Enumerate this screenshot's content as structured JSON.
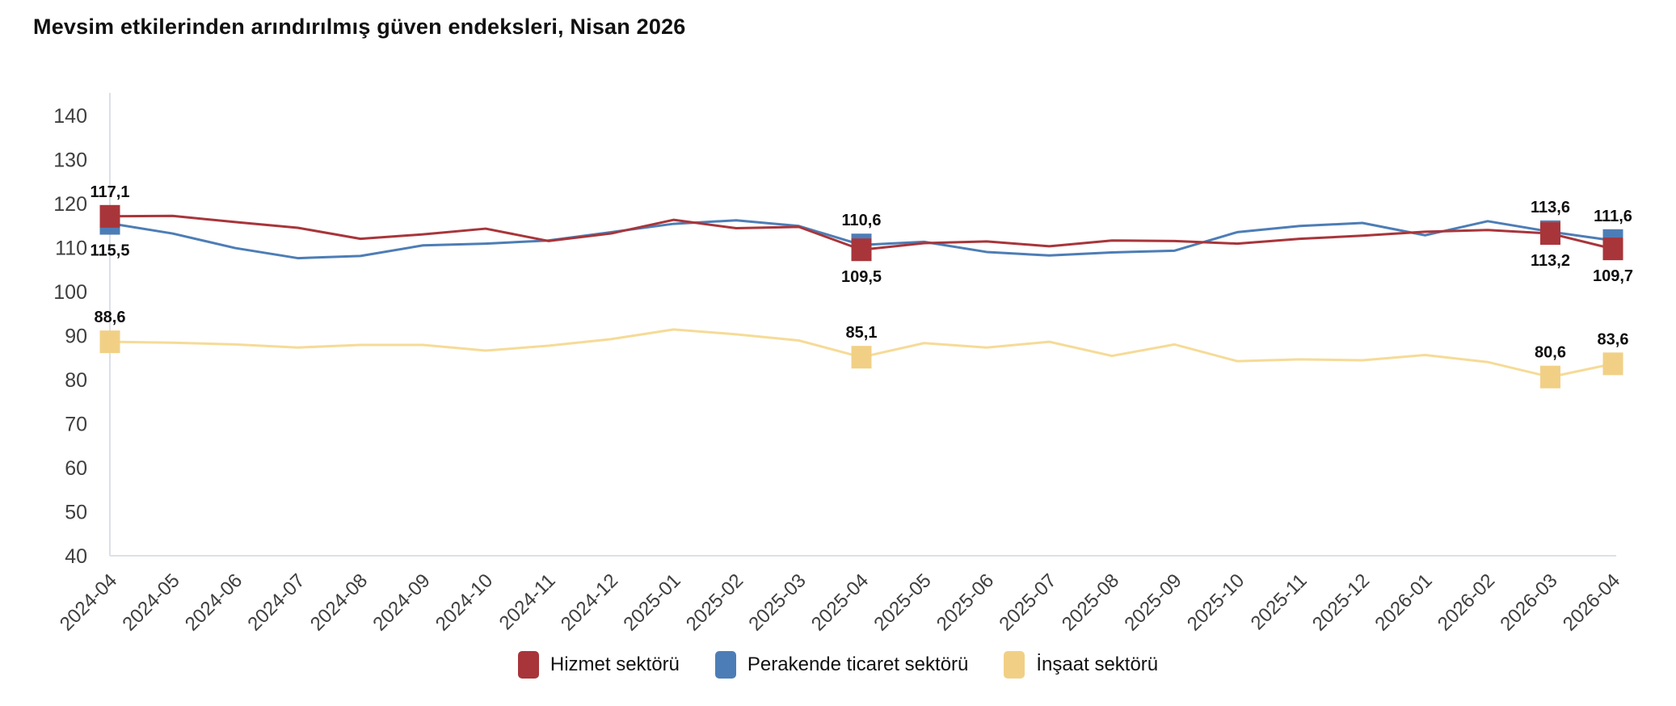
{
  "title": "Mevsim etkilerinden arındırılmış güven endeksleri, Nisan 2026",
  "background": "#ffffff",
  "axis": {
    "line_color": "#dce0e6",
    "tick_text_color": "#3f3f3f"
  },
  "chart_data": {
    "type": "line",
    "title": "Mevsim etkilerinden arındırılmış güven endeksleri, Nisan 2026",
    "xlabel": "",
    "ylabel": "",
    "ylim": [
      40,
      140
    ],
    "yticks": [
      140,
      130,
      120,
      110,
      100,
      90,
      80,
      70,
      60,
      50,
      40
    ],
    "grid": false,
    "legend_position": "bottom-center",
    "marker_shape": "square",
    "marker_x": [
      "2024-04",
      "2025-04",
      "2026-03",
      "2026-04"
    ],
    "x": [
      "2024-04",
      "2024-05",
      "2024-06",
      "2024-07",
      "2024-08",
      "2024-09",
      "2024-10",
      "2024-11",
      "2024-12",
      "2025-01",
      "2025-02",
      "2025-03",
      "2025-04",
      "2025-05",
      "2025-06",
      "2025-07",
      "2025-08",
      "2025-09",
      "2025-10",
      "2025-11",
      "2025-12",
      "2026-01",
      "2026-02",
      "2026-03",
      "2026-04"
    ],
    "series": [
      {
        "key": "insaat",
        "name": "İnşaat sektörü",
        "color": "#F1D086",
        "line_color": "#F6DB97",
        "values": [
          88.6,
          88.4,
          88.0,
          87.3,
          87.9,
          87.9,
          86.6,
          87.7,
          89.2,
          91.4,
          90.3,
          88.9,
          85.1,
          88.3,
          87.3,
          88.6,
          85.4,
          88.0,
          84.2,
          84.6,
          84.4,
          85.6,
          84.0,
          80.6,
          83.6
        ],
        "labeled_points": [
          {
            "x": "2024-04",
            "label": "88,6",
            "placement": "above"
          },
          {
            "x": "2025-04",
            "label": "85,1",
            "placement": "above"
          },
          {
            "x": "2026-03",
            "label": "80,6",
            "placement": "above"
          },
          {
            "x": "2026-04",
            "label": "83,6",
            "placement": "above"
          }
        ]
      },
      {
        "key": "perakende",
        "name": "Perakende ticaret sektörü",
        "color": "#4D7DB6",
        "line_color": "#4D7DB6",
        "values": [
          115.5,
          113.2,
          109.9,
          107.6,
          108.1,
          110.5,
          110.9,
          111.6,
          113.5,
          115.4,
          116.2,
          114.9,
          110.6,
          111.3,
          109.0,
          108.2,
          108.9,
          109.3,
          113.5,
          114.9,
          115.6,
          112.8,
          116.0,
          113.6,
          111.6
        ],
        "labeled_points": [
          {
            "x": "2024-04",
            "label": "115,5",
            "placement": "below"
          },
          {
            "x": "2025-04",
            "label": "110,6",
            "placement": "above"
          },
          {
            "x": "2026-03",
            "label": "113,6",
            "placement": "above"
          },
          {
            "x": "2026-04",
            "label": "111,6",
            "placement": "above"
          }
        ]
      },
      {
        "key": "hizmet",
        "name": "Hizmet sektörü",
        "color": "#A8353A",
        "line_color": "#A8353A",
        "values": [
          117.1,
          117.2,
          115.8,
          114.5,
          112.0,
          113.0,
          114.3,
          111.5,
          113.2,
          116.3,
          114.4,
          114.7,
          109.5,
          111.0,
          111.4,
          110.3,
          111.6,
          111.5,
          110.9,
          112.0,
          112.7,
          113.6,
          114.0,
          113.2,
          109.7
        ],
        "labeled_points": [
          {
            "x": "2024-04",
            "label": "117,1",
            "placement": "above"
          },
          {
            "x": "2025-04",
            "label": "109,5",
            "placement": "below"
          },
          {
            "x": "2026-03",
            "label": "113,2",
            "placement": "below"
          },
          {
            "x": "2026-04",
            "label": "109,7",
            "placement": "below"
          }
        ]
      }
    ],
    "legend_order": [
      "hizmet",
      "perakende",
      "insaat"
    ],
    "data_label_color": "#0f0f0f"
  }
}
